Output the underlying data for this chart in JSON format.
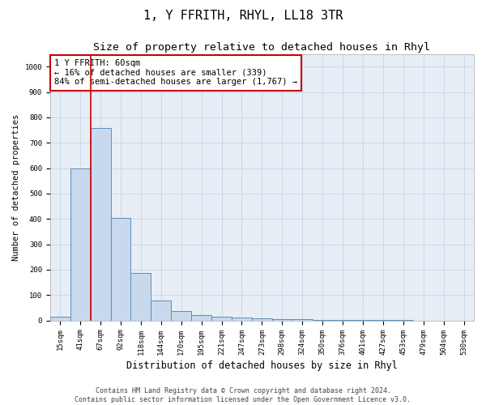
{
  "title": "1, Y FFRITH, RHYL, LL18 3TR",
  "subtitle": "Size of property relative to detached houses in Rhyl",
  "xlabel": "Distribution of detached houses by size in Rhyl",
  "ylabel": "Number of detached properties",
  "bar_labels": [
    "15sqm",
    "41sqm",
    "67sqm",
    "92sqm",
    "118sqm",
    "144sqm",
    "170sqm",
    "195sqm",
    "221sqm",
    "247sqm",
    "273sqm",
    "298sqm",
    "324sqm",
    "350sqm",
    "376sqm",
    "401sqm",
    "427sqm",
    "453sqm",
    "479sqm",
    "504sqm",
    "530sqm"
  ],
  "bar_values": [
    15,
    600,
    760,
    405,
    188,
    78,
    38,
    20,
    15,
    10,
    8,
    6,
    4,
    3,
    2,
    2,
    1,
    1,
    0,
    0,
    0
  ],
  "bar_color": "#c9d9ed",
  "bar_edgecolor": "#5b8db8",
  "bar_linewidth": 0.7,
  "red_line_x": 1.5,
  "ylim": [
    0,
    1050
  ],
  "yticks": [
    0,
    100,
    200,
    300,
    400,
    500,
    600,
    700,
    800,
    900,
    1000
  ],
  "grid_color": "#c8d4e8",
  "bg_color": "#e8eef6",
  "annotation_text": "1 Y FFRITH: 60sqm\n← 16% of detached houses are smaller (339)\n84% of semi-detached houses are larger (1,767) →",
  "annotation_box_facecolor": "#ffffff",
  "annotation_box_edgecolor": "#cc0000",
  "red_line_color": "#cc0000",
  "footer": "Contains HM Land Registry data © Crown copyright and database right 2024.\nContains public sector information licensed under the Open Government Licence v3.0.",
  "title_fontsize": 11,
  "subtitle_fontsize": 9.5,
  "xlabel_fontsize": 8.5,
  "ylabel_fontsize": 7.5,
  "tick_fontsize": 6.5,
  "annotation_fontsize": 7.5,
  "footer_fontsize": 6
}
